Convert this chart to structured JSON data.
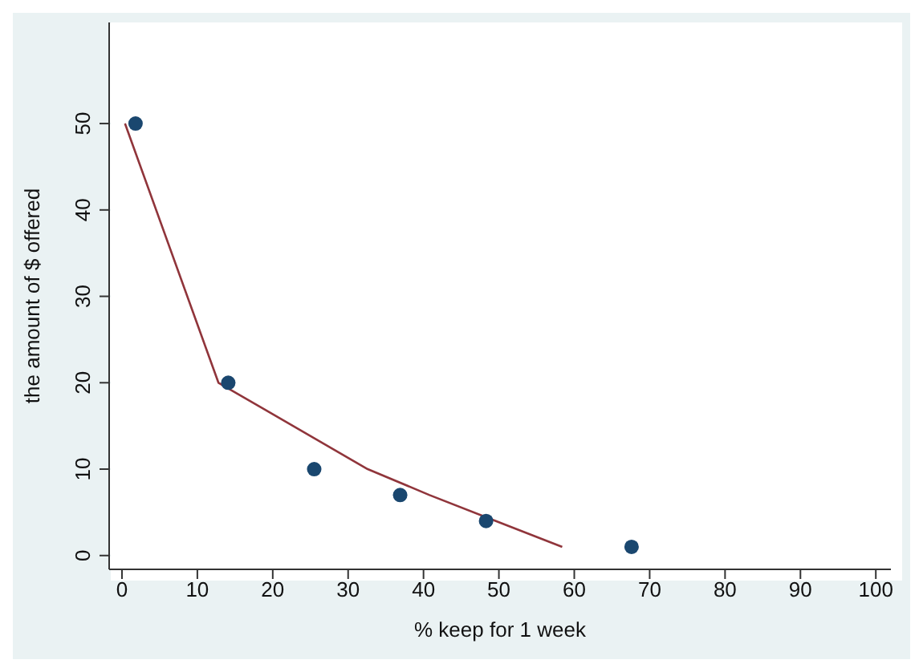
{
  "chart_data": {
    "type": "scatter",
    "xlabel": "% keep for 1 week",
    "ylabel": "the amount of $ offered",
    "xlim": [
      -1.7,
      102
    ],
    "xticks": [
      0,
      10,
      20,
      30,
      40,
      50,
      60,
      70,
      80,
      90,
      100
    ],
    "ylim": [
      -1.6,
      61.7
    ],
    "yticks": [
      0,
      10,
      20,
      30,
      40,
      50
    ],
    "grid": "y",
    "series": [
      {
        "color": "#1a476f",
        "marker": "circle",
        "x": [
          1.8,
          14.1,
          25.5,
          36.9,
          48.3,
          67.6
        ],
        "values": [
          50,
          20,
          10,
          7,
          4,
          1
        ]
      },
      {
        "type": "line",
        "color": "#90353b",
        "marker": "none",
        "line_style": "solid",
        "x": [
          0.4,
          12.8,
          32.6,
          40.8,
          49.6,
          58.4
        ],
        "values": [
          50,
          20,
          10,
          7,
          4,
          1
        ]
      }
    ]
  }
}
